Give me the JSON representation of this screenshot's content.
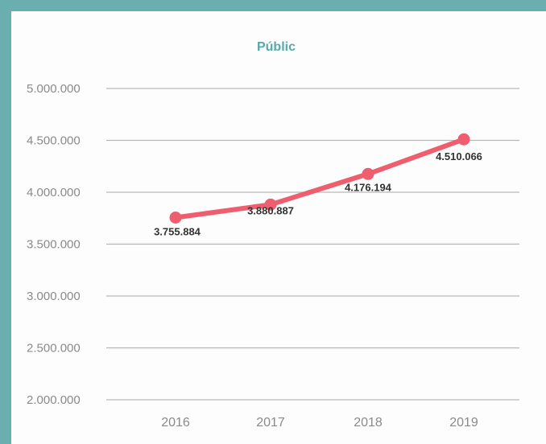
{
  "colors": {
    "frame": "#6aaeb0",
    "background": "#fdfdfd",
    "title": "#5aa9aa",
    "line": "#ee5e6e",
    "grid": "#b8b8b8",
    "tick_text": "#8a8a8a",
    "label_text": "#333333"
  },
  "chart_data": {
    "type": "line",
    "title": "Públic",
    "xlabel": "",
    "ylabel": "",
    "categories": [
      "2016",
      "2017",
      "2018",
      "2019"
    ],
    "series": [
      {
        "values": [
          3755884,
          3880887,
          4176194,
          4510066
        ]
      }
    ],
    "data_labels": [
      "3.755.884",
      "3.880.887",
      "4.176.194",
      "4.510.066"
    ],
    "yticks": [
      2000000,
      2500000,
      3000000,
      3500000,
      4000000,
      4500000,
      5000000
    ],
    "ytick_labels": [
      "2.000.000",
      "2.500.000",
      "3.000.000",
      "3.500.000",
      "4.000.000",
      "4.500.000",
      "5.000.000"
    ],
    "ylim": [
      2000000,
      5000000
    ],
    "grid": true,
    "legend": "none"
  }
}
